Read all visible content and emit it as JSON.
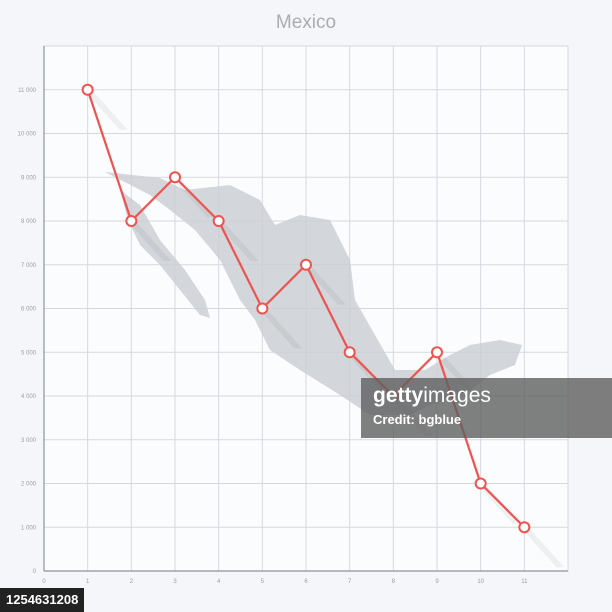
{
  "chart_data": {
    "type": "line",
    "title": "Mexico",
    "x": [
      1,
      2,
      3,
      4,
      5,
      6,
      7,
      8,
      9,
      10,
      11
    ],
    "values": [
      11000,
      8000,
      9000,
      8000,
      6000,
      7000,
      5000,
      4000,
      5000,
      2000,
      1000
    ],
    "xlim": [
      0,
      12
    ],
    "ylim": [
      0,
      12000
    ],
    "x_tick_labels": [
      "0",
      "1",
      "2",
      "3",
      "4",
      "5",
      "6",
      "7",
      "8",
      "9",
      "10",
      "11"
    ],
    "y_tick_labels": [
      "0",
      "1 000",
      "2 000",
      "3 000",
      "4 000",
      "5 000",
      "6 000",
      "7 000",
      "8 000",
      "9 000",
      "10 000",
      "11 000"
    ],
    "grid": true,
    "line_color": "#f0524f",
    "background_map": "Mexico silhouette"
  },
  "watermark": {
    "brand_bold": "getty",
    "brand_light": "images",
    "credit": "Credit: bgblue",
    "image_number": "1254631208"
  }
}
